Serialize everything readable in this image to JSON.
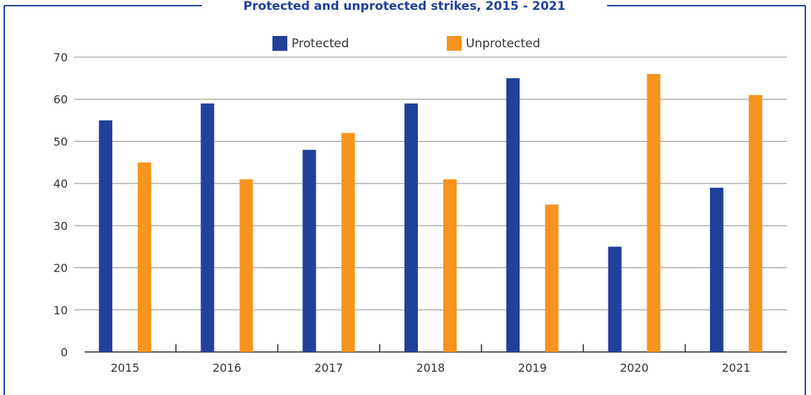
{
  "chart_data": {
    "type": "bar",
    "title": "Protected and unprotected strikes, 2015 - 2021",
    "categories": [
      "2015",
      "2016",
      "2017",
      "2018",
      "2019",
      "2020",
      "2021"
    ],
    "series": [
      {
        "name": "Protected",
        "color": "#21409a",
        "values": [
          55,
          59,
          48,
          59,
          65,
          25,
          39
        ]
      },
      {
        "name": "Unprotected",
        "color": "#f7941d",
        "values": [
          45,
          41,
          52,
          41,
          35,
          66,
          61
        ]
      }
    ],
    "ylim": [
      0,
      70
    ],
    "yticks": [
      "0",
      "10",
      "20",
      "30",
      "40",
      "50",
      "60",
      "70"
    ],
    "grid": true,
    "legend_position": "top-center",
    "frame_color": "#21409a"
  }
}
